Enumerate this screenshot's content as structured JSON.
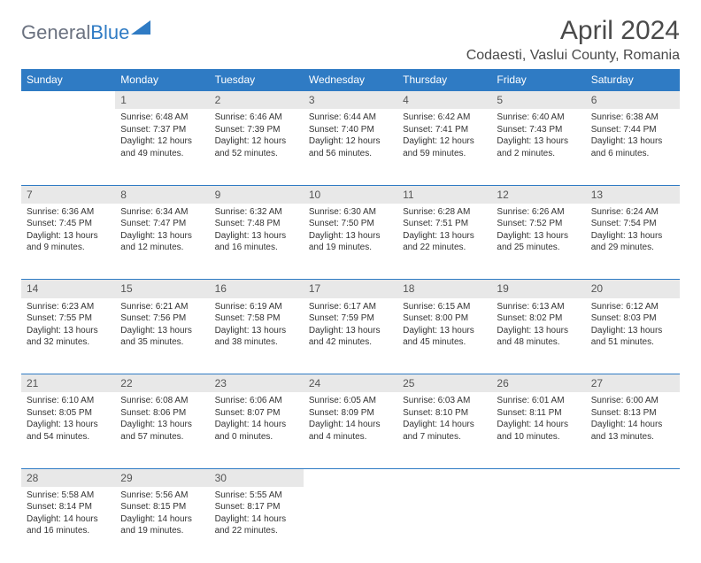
{
  "logo": {
    "gray_text": "General",
    "blue_text": "Blue",
    "triangle_color": "#2f7bc4"
  },
  "title": "April 2024",
  "location": "Codaesti, Vaslui County, Romania",
  "colors": {
    "header_bg": "#2f7bc4",
    "header_text": "#ffffff",
    "daynum_bg": "#e8e8e8",
    "border": "#2f7bc4",
    "text": "#333333"
  },
  "day_headers": [
    "Sunday",
    "Monday",
    "Tuesday",
    "Wednesday",
    "Thursday",
    "Friday",
    "Saturday"
  ],
  "weeks": [
    [
      null,
      {
        "n": "1",
        "sr": "6:48 AM",
        "ss": "7:37 PM",
        "dl": "12 hours and 49 minutes."
      },
      {
        "n": "2",
        "sr": "6:46 AM",
        "ss": "7:39 PM",
        "dl": "12 hours and 52 minutes."
      },
      {
        "n": "3",
        "sr": "6:44 AM",
        "ss": "7:40 PM",
        "dl": "12 hours and 56 minutes."
      },
      {
        "n": "4",
        "sr": "6:42 AM",
        "ss": "7:41 PM",
        "dl": "12 hours and 59 minutes."
      },
      {
        "n": "5",
        "sr": "6:40 AM",
        "ss": "7:43 PM",
        "dl": "13 hours and 2 minutes."
      },
      {
        "n": "6",
        "sr": "6:38 AM",
        "ss": "7:44 PM",
        "dl": "13 hours and 6 minutes."
      }
    ],
    [
      {
        "n": "7",
        "sr": "6:36 AM",
        "ss": "7:45 PM",
        "dl": "13 hours and 9 minutes."
      },
      {
        "n": "8",
        "sr": "6:34 AM",
        "ss": "7:47 PM",
        "dl": "13 hours and 12 minutes."
      },
      {
        "n": "9",
        "sr": "6:32 AM",
        "ss": "7:48 PM",
        "dl": "13 hours and 16 minutes."
      },
      {
        "n": "10",
        "sr": "6:30 AM",
        "ss": "7:50 PM",
        "dl": "13 hours and 19 minutes."
      },
      {
        "n": "11",
        "sr": "6:28 AM",
        "ss": "7:51 PM",
        "dl": "13 hours and 22 minutes."
      },
      {
        "n": "12",
        "sr": "6:26 AM",
        "ss": "7:52 PM",
        "dl": "13 hours and 25 minutes."
      },
      {
        "n": "13",
        "sr": "6:24 AM",
        "ss": "7:54 PM",
        "dl": "13 hours and 29 minutes."
      }
    ],
    [
      {
        "n": "14",
        "sr": "6:23 AM",
        "ss": "7:55 PM",
        "dl": "13 hours and 32 minutes."
      },
      {
        "n": "15",
        "sr": "6:21 AM",
        "ss": "7:56 PM",
        "dl": "13 hours and 35 minutes."
      },
      {
        "n": "16",
        "sr": "6:19 AM",
        "ss": "7:58 PM",
        "dl": "13 hours and 38 minutes."
      },
      {
        "n": "17",
        "sr": "6:17 AM",
        "ss": "7:59 PM",
        "dl": "13 hours and 42 minutes."
      },
      {
        "n": "18",
        "sr": "6:15 AM",
        "ss": "8:00 PM",
        "dl": "13 hours and 45 minutes."
      },
      {
        "n": "19",
        "sr": "6:13 AM",
        "ss": "8:02 PM",
        "dl": "13 hours and 48 minutes."
      },
      {
        "n": "20",
        "sr": "6:12 AM",
        "ss": "8:03 PM",
        "dl": "13 hours and 51 minutes."
      }
    ],
    [
      {
        "n": "21",
        "sr": "6:10 AM",
        "ss": "8:05 PM",
        "dl": "13 hours and 54 minutes."
      },
      {
        "n": "22",
        "sr": "6:08 AM",
        "ss": "8:06 PM",
        "dl": "13 hours and 57 minutes."
      },
      {
        "n": "23",
        "sr": "6:06 AM",
        "ss": "8:07 PM",
        "dl": "14 hours and 0 minutes."
      },
      {
        "n": "24",
        "sr": "6:05 AM",
        "ss": "8:09 PM",
        "dl": "14 hours and 4 minutes."
      },
      {
        "n": "25",
        "sr": "6:03 AM",
        "ss": "8:10 PM",
        "dl": "14 hours and 7 minutes."
      },
      {
        "n": "26",
        "sr": "6:01 AM",
        "ss": "8:11 PM",
        "dl": "14 hours and 10 minutes."
      },
      {
        "n": "27",
        "sr": "6:00 AM",
        "ss": "8:13 PM",
        "dl": "14 hours and 13 minutes."
      }
    ],
    [
      {
        "n": "28",
        "sr": "5:58 AM",
        "ss": "8:14 PM",
        "dl": "14 hours and 16 minutes."
      },
      {
        "n": "29",
        "sr": "5:56 AM",
        "ss": "8:15 PM",
        "dl": "14 hours and 19 minutes."
      },
      {
        "n": "30",
        "sr": "5:55 AM",
        "ss": "8:17 PM",
        "dl": "14 hours and 22 minutes."
      },
      null,
      null,
      null,
      null
    ]
  ],
  "labels": {
    "sunrise": "Sunrise:",
    "sunset": "Sunset:",
    "daylight": "Daylight:"
  }
}
